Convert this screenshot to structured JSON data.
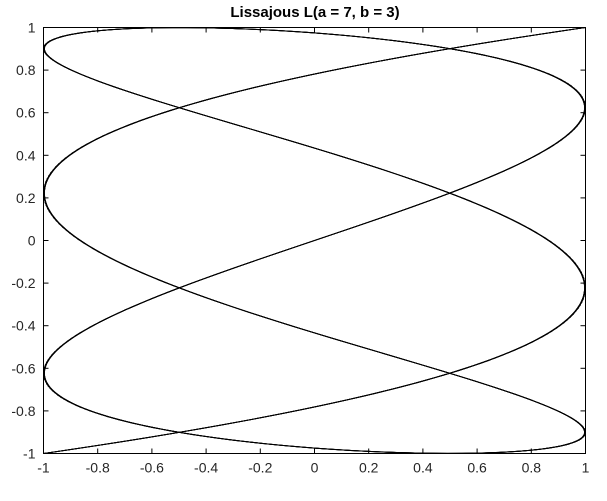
{
  "chart_data": {
    "type": "line",
    "title": "Lissajous L(a = 7, b = 3)",
    "xlabel": "",
    "ylabel": "",
    "xlim": [
      -1,
      1
    ],
    "ylim": [
      -1,
      1
    ],
    "x_ticks": [
      -1,
      -0.8,
      -0.6,
      -0.4,
      -0.2,
      0,
      0.2,
      0.4,
      0.6,
      0.8,
      1
    ],
    "y_ticks": [
      -1,
      -0.8,
      -0.6,
      -0.4,
      -0.2,
      0,
      0.2,
      0.4,
      0.6,
      0.8,
      1
    ],
    "x_tick_labels": [
      "-1",
      "-0.8",
      "-0.6",
      "-0.4",
      "-0.2",
      "0",
      "0.2",
      "0.4",
      "0.6",
      "0.8",
      "1"
    ],
    "y_tick_labels": [
      "-1",
      "-0.8",
      "-0.6",
      "-0.4",
      "-0.2",
      "0",
      "0.2",
      "0.4",
      "0.6",
      "0.8",
      "1"
    ],
    "grid": false,
    "series": [
      {
        "curve": "lissajous",
        "x_function": "sin(a*t)",
        "y_function": "sin(b*t)",
        "a": 7,
        "b": 3,
        "color": "#000000",
        "passes": 5
      }
    ]
  }
}
